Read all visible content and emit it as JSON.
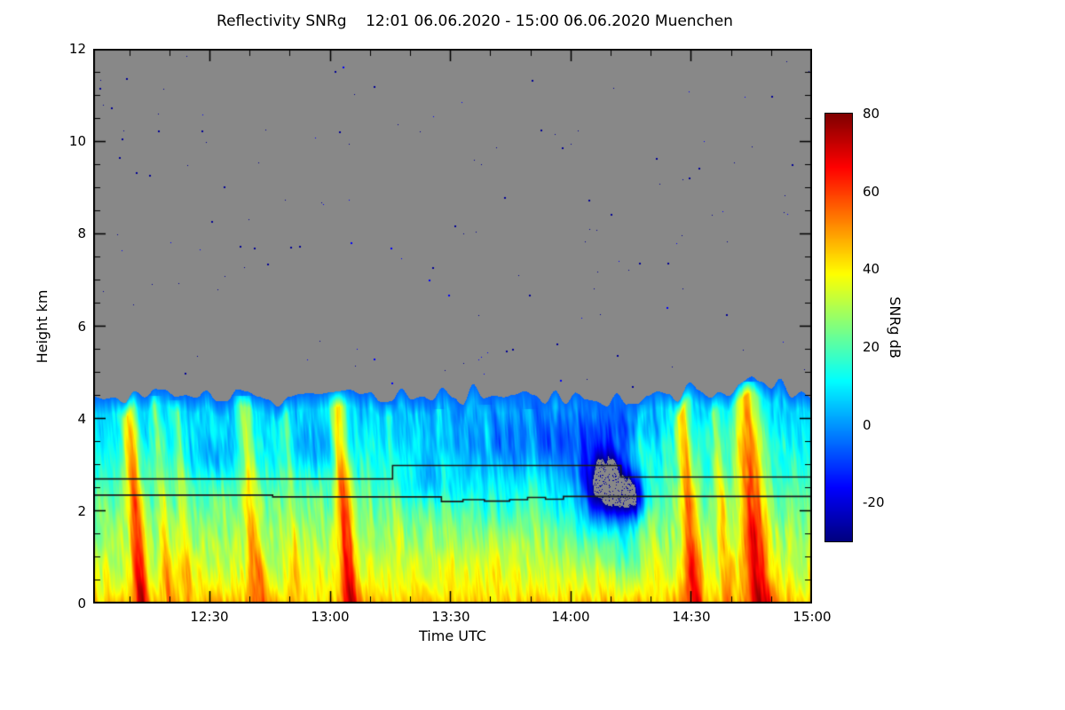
{
  "figure": {
    "title": "Reflectivity SNRg    12:01 06.06.2020 - 15:00 06.06.2020 Muenchen",
    "x_label": "Time UTC",
    "y_label": "Height km",
    "colorbar_label": "SNRg dB"
  },
  "axes": {
    "x_ticks": [
      "12:30",
      "13:00",
      "13:30",
      "14:00",
      "14:30",
      "15:00"
    ],
    "y_ticks": [
      "0",
      "2",
      "4",
      "6",
      "8",
      "10",
      "12"
    ],
    "colorbar_ticks": [
      "80",
      "60",
      "40",
      "20",
      "0",
      "-20"
    ]
  },
  "chart_data": {
    "type": "heatmap",
    "title": "Reflectivity SNRg 12:01 06.06.2020 - 15:00 06.06.2020 Muenchen",
    "site": "Muenchen",
    "time_start": "12:01 06.06.2020",
    "time_end": "15:00 06.06.2020",
    "xlabel": "Time UTC",
    "ylabel": "Height km",
    "x_range_minutes": [
      721,
      900
    ],
    "x_tick_minutes": [
      750,
      780,
      810,
      840,
      870,
      900
    ],
    "x_tick_labels": [
      "12:30",
      "13:00",
      "13:30",
      "14:00",
      "14:30",
      "15:00"
    ],
    "ylim_km": [
      0,
      12
    ],
    "y_tick_km": [
      0,
      2,
      4,
      6,
      8,
      10,
      12
    ],
    "value_label": "SNRg dB",
    "value_range_db": [
      -30,
      80
    ],
    "colorbar_ticks_db": [
      80,
      60,
      40,
      20,
      0,
      -20
    ],
    "colormap": "jet",
    "no_signal_color": "#888888",
    "frame_color": "#000000",
    "melting_line_color": "#1a1a1a",
    "features": {
      "description": "Precipitating cloud layer from surface to ~4.5 km ragged echo top; gray = no signal with sparse blue noise pixels; slanted high-SNR fall streaks reach the ground near 12:13, 12:42, 13:05, 14:31 and 14:47; weak (blue) echo pockets 13:15-14:25 between 2-4 km; echo-free gray notch near 14:15 at 2-3 km; two black stepped melting-layer detection lines near 2.3 km and 2.7-3.0 km",
      "echo_top_km": 4.5,
      "base_db_at_0km": 40,
      "surface_extra_db": 5,
      "lapse_db_per_km": 8,
      "texture_db": 18,
      "streak_lean_per_km": 0.0045,
      "fall_streaks": [
        {
          "t": 0.067,
          "peak": 74,
          "w": 0.01,
          "top": 4.7
        },
        {
          "t": 0.105,
          "peak": 52,
          "w": 0.007,
          "top": 4.5
        },
        {
          "t": 0.134,
          "peak": 50,
          "w": 0.007,
          "top": 4.4
        },
        {
          "t": 0.229,
          "peak": 60,
          "w": 0.011,
          "top": 4.5
        },
        {
          "t": 0.285,
          "peak": 48,
          "w": 0.007,
          "top": 4.4
        },
        {
          "t": 0.358,
          "peak": 72,
          "w": 0.011,
          "top": 4.7
        },
        {
          "t": 0.43,
          "peak": 44,
          "w": 0.006,
          "top": 4.3
        },
        {
          "t": 0.5,
          "peak": 43,
          "w": 0.006,
          "top": 4.2
        },
        {
          "t": 0.565,
          "peak": 44,
          "w": 0.007,
          "top": 4.3
        },
        {
          "t": 0.625,
          "peak": 42,
          "w": 0.006,
          "top": 4.2
        },
        {
          "t": 0.78,
          "peak": 44,
          "w": 0.006,
          "top": 4.3
        },
        {
          "t": 0.838,
          "peak": 70,
          "w": 0.011,
          "top": 4.8
        },
        {
          "t": 0.885,
          "peak": 55,
          "w": 0.008,
          "top": 4.6
        },
        {
          "t": 0.927,
          "peak": 76,
          "w": 0.018,
          "top": 4.8
        }
      ],
      "weak_echo_regions": [
        {
          "t": 0.55,
          "h": 3.3,
          "rt": 0.1,
          "rh": 0.9,
          "d": -13
        },
        {
          "t": 0.65,
          "h": 3.5,
          "rt": 0.08,
          "rh": 0.8,
          "d": -12
        },
        {
          "t": 0.47,
          "h": 2.5,
          "rt": 0.05,
          "rh": 0.5,
          "d": -10
        },
        {
          "t": 0.17,
          "h": 3.15,
          "rt": 0.045,
          "rh": 0.5,
          "d": -11
        },
        {
          "t": 0.31,
          "h": 3.3,
          "rt": 0.05,
          "rh": 0.55,
          "d": -10
        },
        {
          "t": 0.74,
          "h": 3.9,
          "rt": 0.05,
          "rh": 0.5,
          "d": -10
        },
        {
          "t": 0.74,
          "h": 1.2,
          "rt": 0.025,
          "rh": 0.7,
          "d": -14
        },
        {
          "t": 0.665,
          "h": 2.0,
          "rt": 0.04,
          "rh": 1.0,
          "d": -11
        },
        {
          "t": 0.56,
          "h": 2.0,
          "rt": 0.03,
          "rh": 0.6,
          "d": -9
        },
        {
          "t": 0.715,
          "h": 2.55,
          "rt": 0.03,
          "rh": 0.8,
          "d": -60
        },
        {
          "t": 0.75,
          "h": 2.3,
          "rt": 0.02,
          "rh": 0.5,
          "d": -45
        }
      ],
      "echo_top_bumps": [
        {
          "t": 0.838,
          "r": 0.02,
          "d": 0.25
        },
        {
          "t": 0.93,
          "r": 0.03,
          "d": 0.35
        },
        {
          "t": 0.73,
          "r": 0.025,
          "d": -0.15
        }
      ],
      "melting_layer_lines": {
        "upper_km": [
          [
            0,
            2.68
          ],
          [
            0.417,
            2.97
          ],
          [
            0.735,
            2.72
          ],
          [
            1,
            2.72
          ]
        ],
        "lower_km": [
          [
            0,
            2.33
          ],
          [
            0.25,
            2.29
          ],
          [
            0.485,
            2.19
          ],
          [
            0.515,
            2.23
          ],
          [
            0.545,
            2.2
          ],
          [
            0.58,
            2.23
          ],
          [
            0.605,
            2.28
          ],
          [
            0.63,
            2.24
          ],
          [
            0.655,
            2.3
          ],
          [
            1,
            2.3
          ]
        ]
      },
      "noise_dot_count": 140
    }
  }
}
